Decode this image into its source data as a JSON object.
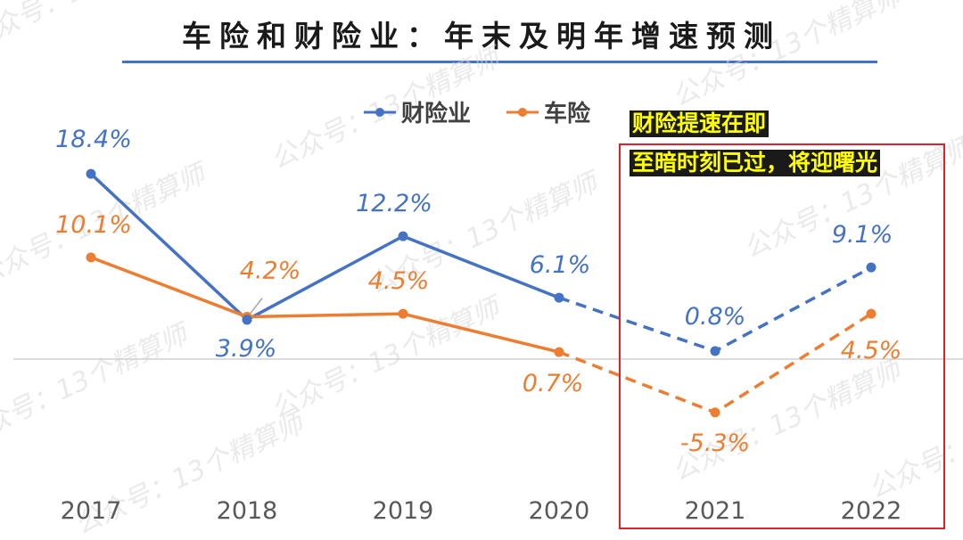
{
  "chart_data": {
    "type": "line",
    "title": "车险和财险业：年末及明年增速预测",
    "categories": [
      "2017",
      "2018",
      "2019",
      "2020",
      "2021",
      "2022"
    ],
    "ylim": [
      -8,
      21
    ],
    "forecast_from_index": 3,
    "series": [
      {
        "name": "财险业",
        "color": "#4472c4",
        "values": [
          18.4,
          3.9,
          12.2,
          6.1,
          0.8,
          9.1
        ],
        "labels": [
          "18.4%",
          "3.9%",
          "12.2%",
          "6.1%",
          "0.8%",
          "9.1%"
        ]
      },
      {
        "name": "车险",
        "color": "#ed7d31",
        "values": [
          10.1,
          4.2,
          4.5,
          0.7,
          -5.3,
          4.5
        ],
        "labels": [
          "10.1%",
          "4.2%",
          "4.5%",
          "0.7%",
          "-5.3%",
          "4.5%"
        ]
      }
    ],
    "annotation": {
      "line1": "财险提速在即",
      "line2": "至暗时刻已过，将迎曙光",
      "box_color": "#e0202a"
    },
    "watermark": "公众号：13个精算师"
  }
}
